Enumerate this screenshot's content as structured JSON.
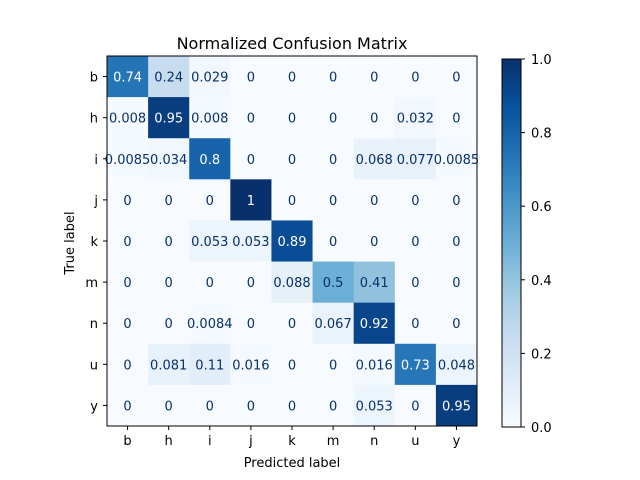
{
  "chart_data": {
    "type": "heatmap",
    "title": "Normalized Confusion Matrix",
    "xlabel": "Predicted label",
    "ylabel": "True label",
    "x_categories": [
      "b",
      "h",
      "i",
      "j",
      "k",
      "m",
      "n",
      "u",
      "y"
    ],
    "y_categories": [
      "b",
      "h",
      "i",
      "j",
      "k",
      "m",
      "n",
      "u",
      "y"
    ],
    "values": [
      [
        0.74,
        0.24,
        0.029,
        0,
        0,
        0,
        0,
        0,
        0
      ],
      [
        0.008,
        0.95,
        0.008,
        0,
        0,
        0,
        0,
        0.032,
        0
      ],
      [
        0.0085,
        0.034,
        0.8,
        0,
        0,
        0,
        0.068,
        0.077,
        0.0085
      ],
      [
        0,
        0,
        0,
        1,
        0,
        0,
        0,
        0,
        0
      ],
      [
        0,
        0,
        0.053,
        0.053,
        0.89,
        0,
        0,
        0,
        0
      ],
      [
        0,
        0,
        0,
        0,
        0.088,
        0.5,
        0.41,
        0,
        0
      ],
      [
        0,
        0,
        0.0084,
        0,
        0,
        0.067,
        0.92,
        0,
        0
      ],
      [
        0,
        0.081,
        0.11,
        0.016,
        0,
        0,
        0.016,
        0.73,
        0.048
      ],
      [
        0,
        0,
        0,
        0,
        0,
        0,
        0.053,
        0,
        0.95
      ]
    ],
    "cell_labels": [
      [
        "0.74",
        "0.24",
        "0.029",
        "0",
        "0",
        "0",
        "0",
        "0",
        "0"
      ],
      [
        "0.008",
        "0.95",
        "0.008",
        "0",
        "0",
        "0",
        "0",
        "0.032",
        "0"
      ],
      [
        "0.0085",
        "0.034",
        "0.8",
        "0",
        "0",
        "0",
        "0.068",
        "0.077",
        "0.0085"
      ],
      [
        "0",
        "0",
        "0",
        "1",
        "0",
        "0",
        "0",
        "0",
        "0"
      ],
      [
        "0",
        "0",
        "0.053",
        "0.053",
        "0.89",
        "0",
        "0",
        "0",
        "0"
      ],
      [
        "0",
        "0",
        "0",
        "0",
        "0.088",
        "0.5",
        "0.41",
        "0",
        "0"
      ],
      [
        "0",
        "0",
        "0.0084",
        "0",
        "0",
        "0.067",
        "0.92",
        "0",
        "0"
      ],
      [
        "0",
        "0.081",
        "0.11",
        "0.016",
        "0",
        "0",
        "0.016",
        "0.73",
        "0.048"
      ],
      [
        "0",
        "0",
        "0",
        "0",
        "0",
        "0",
        "0.053",
        "0",
        "0.95"
      ]
    ],
    "colormap": "Blues",
    "colormap_stops": [
      "#f7fbff",
      "#deebf7",
      "#c6dbef",
      "#9ecae1",
      "#6baed6",
      "#4292c6",
      "#2171b5",
      "#08519c",
      "#08306b"
    ],
    "colorbar": {
      "range": [
        0,
        1
      ],
      "ticks": [
        0.0,
        0.2,
        0.4,
        0.6,
        0.8,
        1.0
      ],
      "tick_labels": [
        "0.0",
        "0.2",
        "0.4",
        "0.6",
        "0.8",
        "1.0"
      ]
    }
  }
}
